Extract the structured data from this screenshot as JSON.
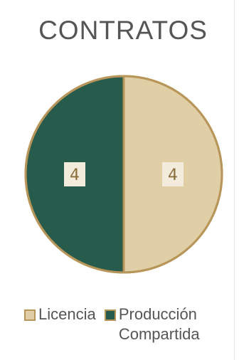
{
  "chart_data": {
    "type": "pie",
    "title": "CONTRATOS",
    "categories": [
      "Licencia",
      "Producción Compartida"
    ],
    "values": [
      4,
      4
    ],
    "colors": [
      "#e0cfa6",
      "#275b4c"
    ],
    "border_color": "#b8965a",
    "label_bg": "#f3ecdc",
    "label_color": "#8a6d3b",
    "legend_position": "bottom"
  }
}
